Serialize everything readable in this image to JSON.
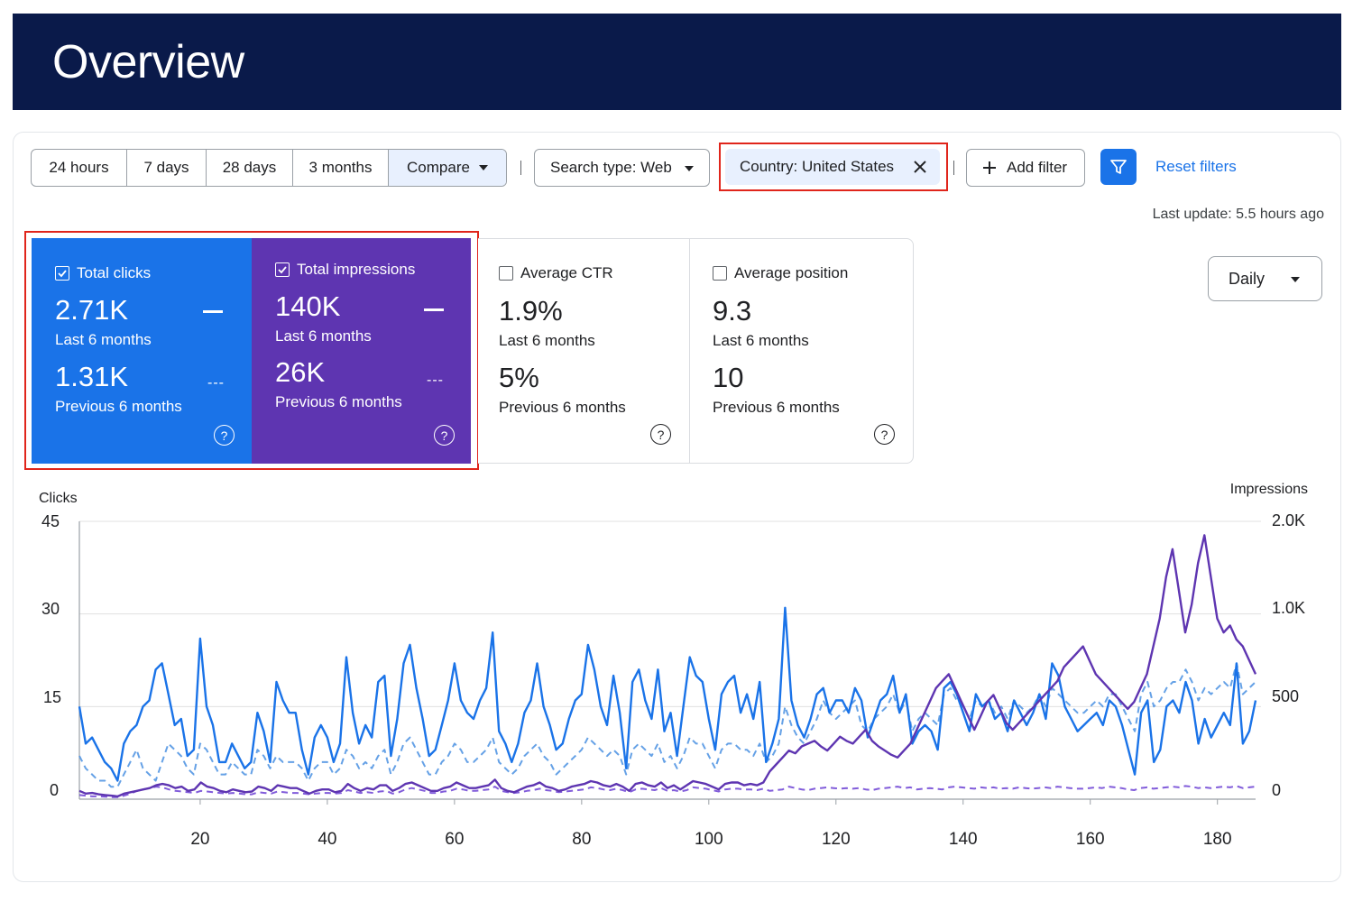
{
  "header": {
    "title": "Overview"
  },
  "toolbar": {
    "ranges": [
      "24 hours",
      "7 days",
      "28 days",
      "3 months"
    ],
    "compare_label": "Compare",
    "search_type": "Search type: Web",
    "country_filter": "Country: United States",
    "add_filter": "Add filter",
    "reset_filters": "Reset filters"
  },
  "last_update": "Last update: 5.5 hours ago",
  "granularity": "Daily",
  "colors": {
    "clicks": "#1a73e8",
    "impressions": "#5e35b1",
    "clicks_prev": "#4a90e2",
    "impressions_prev": "#6b3fd4",
    "highlight": "#e0251b",
    "header": "#0a1a4a"
  },
  "cards": {
    "clicks": {
      "title": "Total clicks",
      "value": "2.71K",
      "label": "Last 6 months",
      "prev_value": "1.31K",
      "prev_label": "Previous 6 months",
      "checked": true
    },
    "impressions": {
      "title": "Total impressions",
      "value": "140K",
      "label": "Last 6 months",
      "prev_value": "26K",
      "prev_label": "Previous 6 months",
      "checked": true
    },
    "ctr": {
      "title": "Average CTR",
      "value": "1.9%",
      "label": "Last 6 months",
      "prev_value": "5%",
      "prev_label": "Previous 6 months",
      "checked": false
    },
    "position": {
      "title": "Average position",
      "value": "9.3",
      "label": "Last 6 months",
      "prev_value": "10",
      "prev_label": "Previous 6 months",
      "checked": false
    }
  },
  "chart_data": {
    "type": "line",
    "left_axis_title": "Clicks",
    "right_axis_title": "Impressions",
    "left_ticks": [
      "45",
      "30",
      "15",
      "0"
    ],
    "right_ticks": [
      "2.0K",
      "1.0K",
      "500",
      "0"
    ],
    "x_ticks": [
      "20",
      "40",
      "60",
      "80",
      "100",
      "120",
      "140",
      "160",
      "180"
    ],
    "ylim_left": [
      0,
      45
    ],
    "xlim": [
      1,
      186
    ],
    "series": [
      {
        "name": "Clicks (last 6 months)",
        "axis": "left",
        "style": "solid",
        "color": "#1a73e8",
        "values": [
          15,
          9,
          10,
          8,
          6,
          5,
          3,
          9,
          11,
          12,
          15,
          16,
          21,
          22,
          17,
          12,
          13,
          7,
          8,
          26,
          15,
          12,
          6,
          6,
          9,
          7,
          5,
          6,
          14,
          11,
          6,
          19,
          16,
          14,
          14,
          8,
          4,
          10,
          12,
          10,
          6,
          9,
          23,
          14,
          9,
          12,
          10,
          19,
          20,
          7,
          13,
          22,
          25,
          18,
          13,
          7,
          8,
          12,
          16,
          22,
          16,
          14,
          13,
          16,
          18,
          27,
          11,
          9,
          6,
          9,
          14,
          16,
          22,
          15,
          12,
          8,
          9,
          13,
          16,
          17,
          25,
          21,
          15,
          12,
          20,
          14,
          5,
          19,
          21,
          16,
          13,
          21,
          11,
          14,
          7,
          15,
          23,
          20,
          19,
          13,
          8,
          17,
          19,
          20,
          14,
          17,
          13,
          19,
          6,
          9,
          13,
          31,
          16,
          12,
          10,
          13,
          17,
          18,
          14,
          16,
          16,
          14,
          18,
          16,
          10,
          13,
          16,
          17,
          20,
          14,
          17,
          9,
          11,
          12,
          11,
          8,
          18,
          19,
          17,
          14,
          11,
          17,
          15,
          16,
          13,
          14,
          11,
          16,
          14,
          12,
          14,
          17,
          13,
          22,
          20,
          15,
          13,
          11,
          12,
          13,
          14,
          12,
          16,
          15,
          12,
          8,
          4,
          14,
          16,
          6,
          8,
          15,
          16,
          14,
          19,
          16,
          9,
          13,
          10,
          12,
          14,
          12,
          22,
          9,
          11,
          16
        ]
      },
      {
        "name": "Impressions (last 6 months)",
        "axis": "right",
        "style": "solid",
        "color": "#5e35b1",
        "values": [
          60,
          40,
          45,
          35,
          30,
          25,
          20,
          40,
          50,
          60,
          70,
          80,
          100,
          110,
          100,
          80,
          90,
          60,
          70,
          120,
          90,
          80,
          60,
          50,
          70,
          60,
          50,
          55,
          90,
          80,
          60,
          100,
          90,
          80,
          80,
          60,
          40,
          60,
          70,
          70,
          50,
          60,
          110,
          80,
          60,
          80,
          70,
          100,
          100,
          60,
          80,
          110,
          120,
          100,
          80,
          60,
          60,
          80,
          90,
          120,
          100,
          80,
          80,
          90,
          100,
          140,
          80,
          60,
          50,
          70,
          90,
          100,
          120,
          90,
          80,
          60,
          70,
          90,
          100,
          110,
          130,
          120,
          100,
          90,
          110,
          90,
          60,
          110,
          120,
          100,
          90,
          120,
          80,
          100,
          70,
          100,
          130,
          120,
          110,
          90,
          70,
          110,
          120,
          120,
          100,
          110,
          100,
          120,
          200,
          250,
          300,
          350,
          330,
          380,
          400,
          420,
          380,
          350,
          400,
          450,
          420,
          400,
          450,
          500,
          420,
          380,
          350,
          320,
          300,
          350,
          400,
          500,
          600,
          700,
          800,
          850,
          900,
          800,
          700,
          600,
          500,
          600,
          700,
          750,
          650,
          550,
          500,
          550,
          600,
          650,
          700,
          750,
          800,
          850,
          950,
          1000,
          1050,
          1100,
          1000,
          900,
          850,
          800,
          750,
          700,
          650,
          700,
          800,
          900,
          1100,
          1300,
          1600,
          1800,
          1500,
          1200,
          1400,
          1700,
          1900,
          1600,
          1300,
          1200,
          1250,
          1150,
          1100,
          1000,
          900
        ]
      },
      {
        "name": "Clicks (previous 6 months)",
        "axis": "left",
        "style": "dashed",
        "color": "#4a90e2",
        "values": [
          7,
          5,
          4,
          3,
          3,
          2,
          2,
          4,
          6,
          8,
          5,
          4,
          3,
          6,
          9,
          8,
          7,
          5,
          4,
          9,
          8,
          6,
          4,
          4,
          6,
          5,
          4,
          4,
          8,
          7,
          5,
          7,
          6,
          6,
          6,
          5,
          3,
          5,
          6,
          6,
          4,
          5,
          8,
          7,
          5,
          6,
          5,
          7,
          8,
          4,
          6,
          9,
          10,
          8,
          6,
          4,
          4,
          6,
          7,
          9,
          8,
          6,
          6,
          7,
          8,
          10,
          6,
          5,
          4,
          5,
          7,
          8,
          9,
          7,
          6,
          4,
          5,
          6,
          7,
          8,
          10,
          9,
          8,
          7,
          8,
          7,
          4,
          8,
          9,
          8,
          7,
          9,
          6,
          7,
          5,
          7,
          10,
          9,
          9,
          7,
          5,
          8,
          9,
          9,
          8,
          8,
          7,
          9,
          6,
          7,
          9,
          15,
          12,
          10,
          9,
          11,
          13,
          16,
          14,
          13,
          14,
          15,
          16,
          12,
          11,
          13,
          14,
          15,
          17,
          14,
          16,
          11,
          13,
          14,
          13,
          12,
          17,
          18,
          16,
          15,
          13,
          16,
          15,
          16,
          14,
          15,
          13,
          16,
          15,
          14,
          15,
          17,
          15,
          18,
          17,
          16,
          15,
          14,
          14,
          15,
          16,
          15,
          17,
          17,
          15,
          13,
          11,
          17,
          19,
          15,
          16,
          18,
          19,
          19,
          21,
          19,
          16,
          18,
          17,
          18,
          19,
          18,
          22,
          17,
          18,
          19
        ]
      },
      {
        "name": "Impressions (previous 6 months)",
        "axis": "right",
        "style": "dashed",
        "color": "#6b3fd4",
        "values": [
          30,
          25,
          20,
          20,
          18,
          15,
          15,
          25,
          40,
          60,
          70,
          80,
          90,
          85,
          70,
          60,
          55,
          50,
          45,
          60,
          55,
          50,
          45,
          40,
          45,
          40,
          35,
          35,
          50,
          45,
          40,
          55,
          50,
          45,
          45,
          40,
          35,
          40,
          45,
          45,
          40,
          45,
          65,
          55,
          45,
          50,
          45,
          55,
          60,
          40,
          50,
          70,
          80,
          70,
          60,
          45,
          45,
          55,
          60,
          75,
          70,
          60,
          60,
          65,
          70,
          90,
          60,
          50,
          45,
          50,
          60,
          65,
          75,
          65,
          60,
          50,
          55,
          60,
          65,
          70,
          85,
          80,
          70,
          65,
          75,
          65,
          50,
          70,
          75,
          70,
          65,
          80,
          60,
          65,
          55,
          65,
          85,
          80,
          75,
          65,
          55,
          70,
          75,
          75,
          70,
          70,
          65,
          75,
          60,
          65,
          70,
          90,
          80,
          70,
          65,
          75,
          80,
          85,
          80,
          75,
          80,
          75,
          80,
          70,
          65,
          75,
          80,
          85,
          90,
          80,
          85,
          70,
          75,
          80,
          75,
          70,
          85,
          90,
          85,
          80,
          75,
          85,
          80,
          85,
          75,
          80,
          75,
          85,
          80,
          75,
          80,
          85,
          80,
          90,
          85,
          80,
          75,
          75,
          80,
          85,
          80,
          90,
          85,
          80,
          70,
          65,
          80,
          85,
          75,
          80,
          85,
          90,
          85,
          95,
          90,
          80,
          85,
          80,
          85,
          90,
          85,
          95,
          80,
          85,
          90
        ]
      }
    ]
  }
}
